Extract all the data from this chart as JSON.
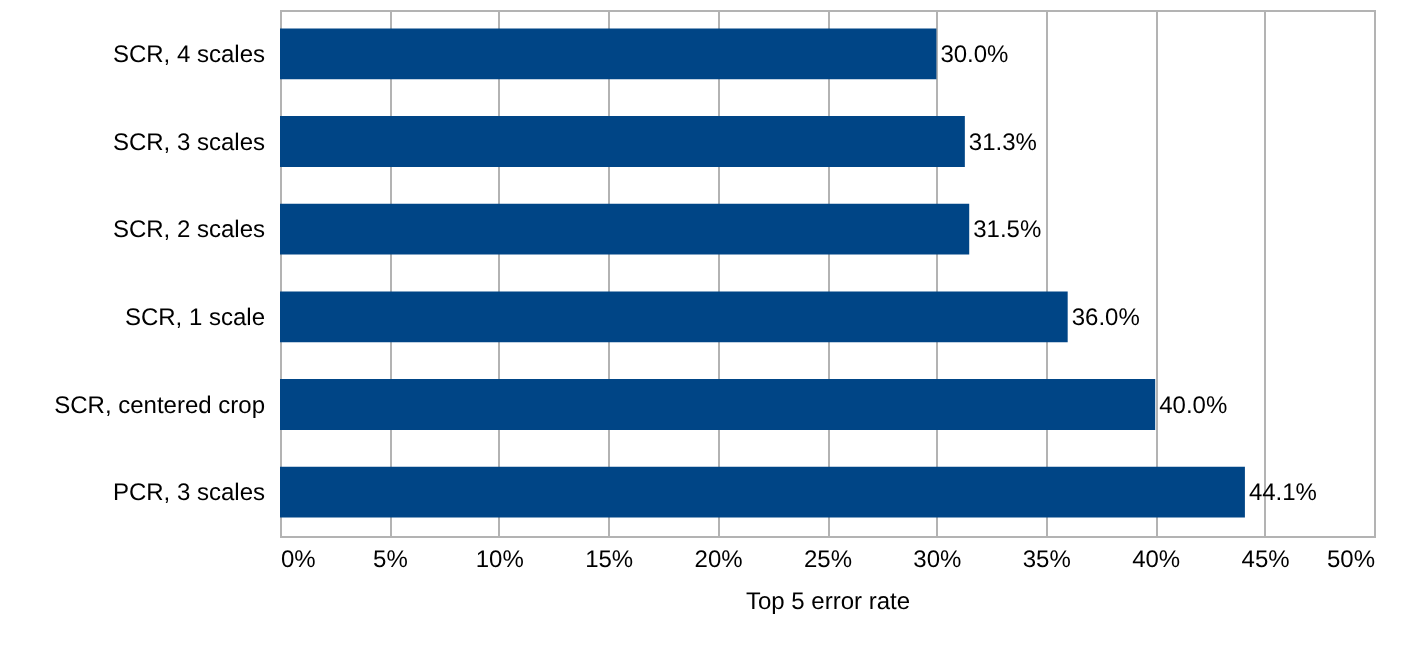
{
  "chart_data": {
    "type": "bar",
    "orientation": "horizontal",
    "xlabel": "Top 5 error rate",
    "categories": [
      "SCR, 4 scales",
      "SCR, 3 scales",
      "SCR, 2 scales",
      "SCR, 1 scale",
      "SCR, centered crop",
      "PCR, 3 scales"
    ],
    "values": [
      30.0,
      31.3,
      31.5,
      36.0,
      40.0,
      44.1
    ],
    "value_labels": [
      "30.0%",
      "31.3%",
      "31.5%",
      "36.0%",
      "40.0%",
      "44.1%"
    ],
    "color": "#004586",
    "xlim": [
      0,
      50
    ],
    "xticks": [
      {
        "value": 0,
        "label": "0%"
      },
      {
        "value": 5,
        "label": "5%"
      },
      {
        "value": 10,
        "label": "10%"
      },
      {
        "value": 15,
        "label": "15%"
      },
      {
        "value": 20,
        "label": "20%"
      },
      {
        "value": 25,
        "label": "25%"
      },
      {
        "value": 30,
        "label": "30%"
      },
      {
        "value": 35,
        "label": "35%"
      },
      {
        "value": 40,
        "label": "40%"
      },
      {
        "value": 45,
        "label": "45%"
      },
      {
        "value": 50,
        "label": "50%"
      }
    ],
    "grid": "x"
  }
}
